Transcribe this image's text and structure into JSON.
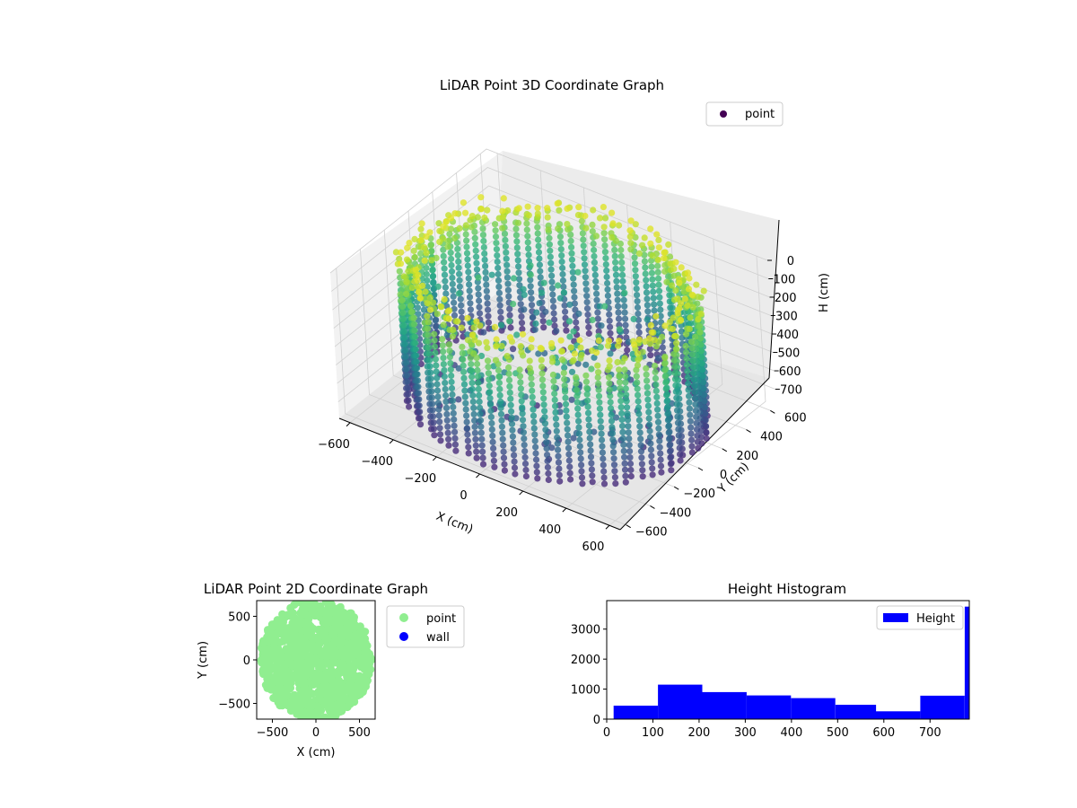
{
  "chart_data": [
    {
      "type": "scatter",
      "title": "LiDAR Point 3D Coordinate Graph",
      "xlabel": "X (cm)",
      "ylabel": "Y (cm)",
      "zlabel": "H (cm)",
      "legend": {
        "placement": "top-right",
        "entries": [
          "point"
        ]
      },
      "xlim": [
        -650,
        650
      ],
      "ylim": [
        -650,
        650
      ],
      "zlim": [
        790,
        0
      ],
      "xticks": [
        -600,
        -400,
        -200,
        0,
        200,
        400,
        600
      ],
      "yticks": [
        -600,
        -400,
        -200,
        0,
        200,
        400,
        600
      ],
      "zticks": [
        0,
        100,
        200,
        300,
        400,
        500,
        600,
        700
      ],
      "colormap": "viridis",
      "grid": true,
      "series": [
        {
          "name": "point",
          "color": "#440154",
          "shape": "cylindrical wall of vertical scan columns, radius ~600 cm, heights 0-780 cm, plus scattered interior points"
        }
      ]
    },
    {
      "type": "scatter",
      "title": "LiDAR Point 2D Coordinate Graph",
      "xlabel": "X (cm)",
      "ylabel": "Y (cm)",
      "xlim": [
        -680,
        680
      ],
      "ylim": [
        -680,
        680
      ],
      "xticks": [
        -500,
        0,
        500
      ],
      "yticks": [
        -500,
        0,
        500
      ],
      "legend": {
        "placement": "outside-right",
        "entries": [
          "point",
          "wall"
        ]
      },
      "series": [
        {
          "name": "point",
          "color": "#90ee90"
        },
        {
          "name": "wall",
          "color": "#0000ff"
        }
      ]
    },
    {
      "type": "bar",
      "title": "Height Histogram",
      "xlim": [
        0,
        785
      ],
      "ylim": [
        0,
        3950
      ],
      "xticks": [
        0,
        100,
        200,
        300,
        400,
        500,
        600,
        700
      ],
      "yticks": [
        0,
        1000,
        2000,
        3000
      ],
      "legend": {
        "placement": "top-right",
        "entries": [
          "Height"
        ]
      },
      "color": "#0000ff",
      "bins": [
        {
          "x0": 15,
          "x1": 111,
          "value": 450
        },
        {
          "x0": 111,
          "x1": 207,
          "value": 1150
        },
        {
          "x0": 207,
          "x1": 303,
          "value": 900
        },
        {
          "x0": 303,
          "x1": 399,
          "value": 790
        },
        {
          "x0": 399,
          "x1": 495,
          "value": 700
        },
        {
          "x0": 495,
          "x1": 583,
          "value": 480
        },
        {
          "x0": 583,
          "x1": 679,
          "value": 260
        },
        {
          "x0": 679,
          "x1": 775,
          "value": 780
        },
        {
          "x0": 775,
          "x1": 785,
          "value": 3750
        }
      ],
      "series": [
        {
          "name": "Height",
          "values": [
            450,
            1150,
            900,
            790,
            700,
            480,
            260,
            780,
            3750
          ]
        }
      ]
    }
  ]
}
